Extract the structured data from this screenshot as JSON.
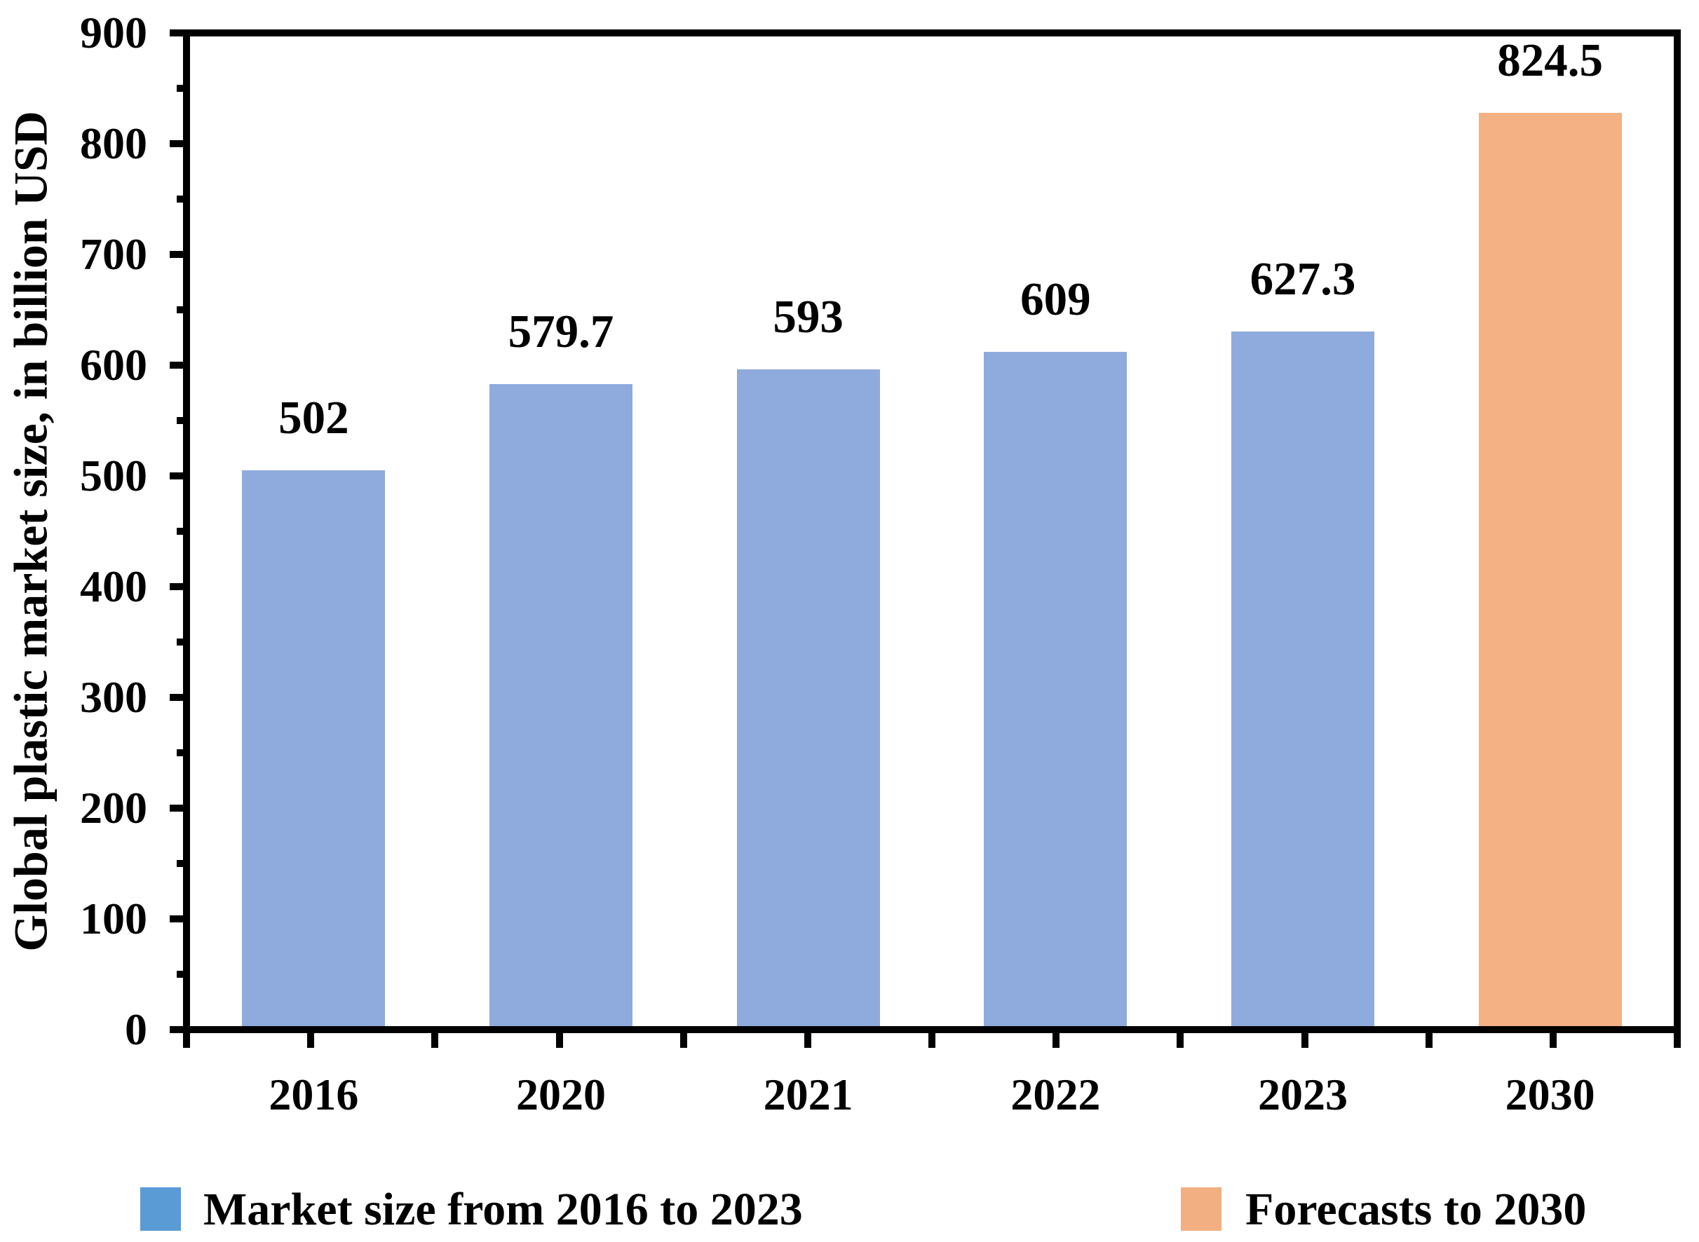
{
  "chart_data": {
    "type": "bar",
    "title": "",
    "categories": [
      "2016",
      "2020",
      "2021",
      "2022",
      "2023",
      "2030"
    ],
    "values": [
      502,
      579.7,
      593,
      609,
      627.3,
      824.5
    ],
    "value_labels": [
      "502",
      "579.7",
      "593",
      "609",
      "627.3",
      "824.5"
    ],
    "xlabel": "",
    "ylabel": "Global plastic market size, in billion USD",
    "ylim": [
      0,
      900
    ],
    "y_major_step": 100,
    "y_minor_step": 50,
    "y_tick_labels": [
      "0",
      "100",
      "200",
      "300",
      "400",
      "500",
      "600",
      "700",
      "800",
      "900"
    ],
    "grid": "off",
    "legend_position": "bottom",
    "series": [
      {
        "name": "Market size from 2016 to 2023",
        "bar_color": "#8FAADC",
        "legend_swatch_color": "#5B9BD5",
        "categories": [
          "2016",
          "2020",
          "2021",
          "2022",
          "2023"
        ]
      },
      {
        "name": "Forecasts to 2030",
        "bar_color": "#F4B183",
        "legend_swatch_color": "#F2AF82",
        "categories": [
          "2030"
        ]
      }
    ],
    "bar_series_index": [
      0,
      0,
      0,
      0,
      0,
      1
    ]
  },
  "colors": {
    "axis": "#000000",
    "background": "#FFFFFF",
    "text": "#000000",
    "bar_blue": "#8FAADC",
    "bar_orange": "#F4B183"
  },
  "legend": {
    "items": [
      {
        "label": "Market size from 2016 to 2023",
        "swatch": "#5B9BD5"
      },
      {
        "label": "Forecasts to 2030",
        "swatch": "#F2AF82"
      }
    ]
  }
}
